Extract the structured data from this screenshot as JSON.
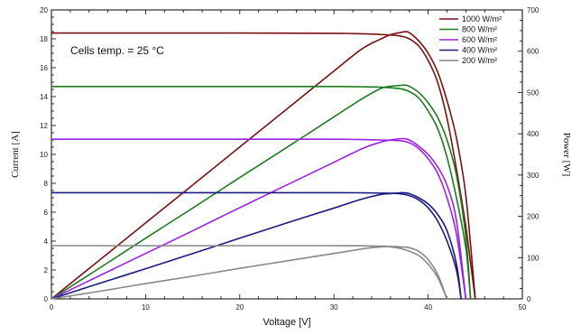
{
  "chart_data": {
    "type": "line",
    "annotation": "Cells temp. = 25 °C",
    "xlabel": "Voltage [V]",
    "ylabel_left": "Current [A]",
    "ylabel_right": "Power [W]",
    "xlim": [
      0,
      50
    ],
    "ylim_left": [
      0,
      20
    ],
    "ylim_right": [
      0,
      700
    ],
    "x_ticks": [
      0,
      10,
      20,
      30,
      40,
      50
    ],
    "y_left_ticks": [
      0,
      2,
      4,
      6,
      8,
      10,
      12,
      14,
      16,
      18,
      20
    ],
    "y_right_ticks": [
      0,
      100,
      200,
      300,
      400,
      500,
      600,
      700
    ],
    "grid": false,
    "legend_position": "top-right",
    "series": [
      {
        "name": "1000 W/m²",
        "color": "#7b1010",
        "current": {
          "x": [
            0,
            10,
            20,
            30,
            33,
            35,
            37,
            38,
            39,
            40,
            41,
            42,
            43,
            44,
            44.5,
            45
          ],
          "y": [
            18.4,
            18.4,
            18.4,
            18.38,
            18.35,
            18.3,
            18.2,
            18.0,
            17.5,
            16.5,
            15.0,
            12.5,
            9.0,
            5.0,
            2.5,
            0
          ]
        },
        "power": {
          "x": [
            0,
            5,
            10,
            15,
            20,
            25,
            30,
            33,
            35,
            36,
            37,
            37.5,
            38,
            39,
            40,
            41,
            42,
            43,
            44,
            45
          ],
          "y": [
            0,
            92,
            184,
            276,
            368,
            460,
            552,
            606,
            630,
            640,
            645,
            647,
            645,
            625,
            595,
            550,
            480,
            390,
            250,
            0
          ]
        }
      },
      {
        "name": "800 W/m²",
        "color": "#1f7a1f",
        "current": {
          "x": [
            0,
            10,
            20,
            30,
            33,
            35,
            37,
            38,
            39,
            40,
            41,
            42,
            43,
            44,
            44.5
          ],
          "y": [
            14.7,
            14.7,
            14.7,
            14.7,
            14.68,
            14.65,
            14.55,
            14.35,
            13.9,
            13.0,
            11.8,
            9.8,
            7.0,
            3.5,
            0
          ]
        },
        "power": {
          "x": [
            0,
            5,
            10,
            15,
            20,
            25,
            30,
            33,
            35,
            36,
            37,
            37.5,
            38,
            39,
            40,
            41,
            42,
            43,
            44,
            44.5
          ],
          "y": [
            0,
            73,
            147,
            220,
            294,
            367,
            441,
            485,
            510,
            515,
            517,
            518,
            515,
            500,
            475,
            440,
            385,
            300,
            150,
            0
          ]
        }
      },
      {
        "name": "600 W/m²",
        "color": "#9a22e6",
        "current": {
          "x": [
            0,
            10,
            20,
            30,
            33,
            35,
            37,
            38,
            39,
            40,
            41,
            42,
            43,
            44
          ],
          "y": [
            11.05,
            11.05,
            11.05,
            11.05,
            11.03,
            11.0,
            10.95,
            10.8,
            10.4,
            9.7,
            8.7,
            7.0,
            4.5,
            0
          ]
        },
        "power": {
          "x": [
            0,
            5,
            10,
            15,
            20,
            25,
            30,
            33,
            35,
            36,
            37,
            37.5,
            38,
            39,
            40,
            41,
            42,
            43,
            44
          ],
          "y": [
            0,
            55,
            110,
            165,
            221,
            276,
            331,
            364,
            380,
            385,
            388,
            388,
            385,
            370,
            350,
            320,
            275,
            190,
            0
          ]
        }
      },
      {
        "name": "400 W/m²",
        "color": "#1a1a80",
        "current": {
          "x": [
            0,
            10,
            20,
            30,
            33,
            35,
            37,
            38,
            39,
            40,
            41,
            42,
            43,
            43.5
          ],
          "y": [
            7.35,
            7.35,
            7.35,
            7.35,
            7.34,
            7.32,
            7.28,
            7.15,
            6.85,
            6.3,
            5.4,
            4.0,
            2.0,
            0
          ]
        },
        "power": {
          "x": [
            0,
            5,
            10,
            15,
            20,
            25,
            30,
            33,
            35,
            36,
            37,
            37.5,
            38,
            39,
            40,
            41,
            42,
            43,
            43.5
          ],
          "y": [
            0,
            37,
            73,
            110,
            147,
            184,
            220,
            242,
            253,
            255,
            257,
            257,
            255,
            245,
            230,
            205,
            165,
            85,
            0
          ]
        }
      },
      {
        "name": "200 W/m²",
        "color": "#888888",
        "current": {
          "x": [
            0,
            10,
            20,
            30,
            33,
            35,
            36,
            37,
            38,
            39,
            40,
            41,
            42
          ],
          "y": [
            3.68,
            3.68,
            3.68,
            3.68,
            3.67,
            3.65,
            3.6,
            3.5,
            3.3,
            3.0,
            2.4,
            1.5,
            0
          ]
        },
        "power": {
          "x": [
            0,
            5,
            10,
            15,
            20,
            25,
            30,
            33,
            34,
            35,
            36,
            37,
            38,
            39,
            40,
            41,
            42
          ],
          "y": [
            0,
            18,
            37,
            55,
            74,
            92,
            110,
            121,
            124,
            126,
            127,
            126,
            124,
            115,
            95,
            60,
            0
          ]
        }
      }
    ]
  }
}
